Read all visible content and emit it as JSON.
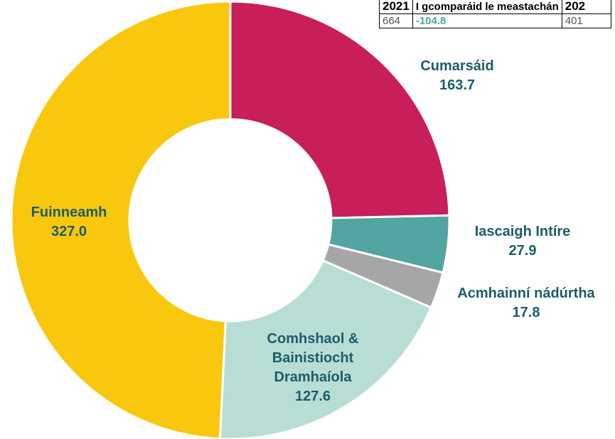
{
  "table": {
    "header": [
      "2021",
      "I gcomparáid le meastachán",
      "202"
    ],
    "row": [
      "664",
      "-104.8",
      "401"
    ]
  },
  "chart_data": {
    "type": "donut",
    "categories": [
      "Cumarsáid",
      "Iascaigh Intíre",
      "Acmhainní nádúrtha",
      "Comhshaol & Bainistiocht Dramhaíola",
      "Fuinneamh"
    ],
    "values": [
      163.7,
      27.9,
      17.8,
      127.6,
      327.0
    ],
    "value_labels": [
      "163.7",
      "27.9",
      "17.8",
      "127.6",
      "327.0"
    ],
    "colors": [
      "#c81e5a",
      "#52a5a0",
      "#a6a6a6",
      "#b8ddd5",
      "#f9c80e"
    ]
  }
}
